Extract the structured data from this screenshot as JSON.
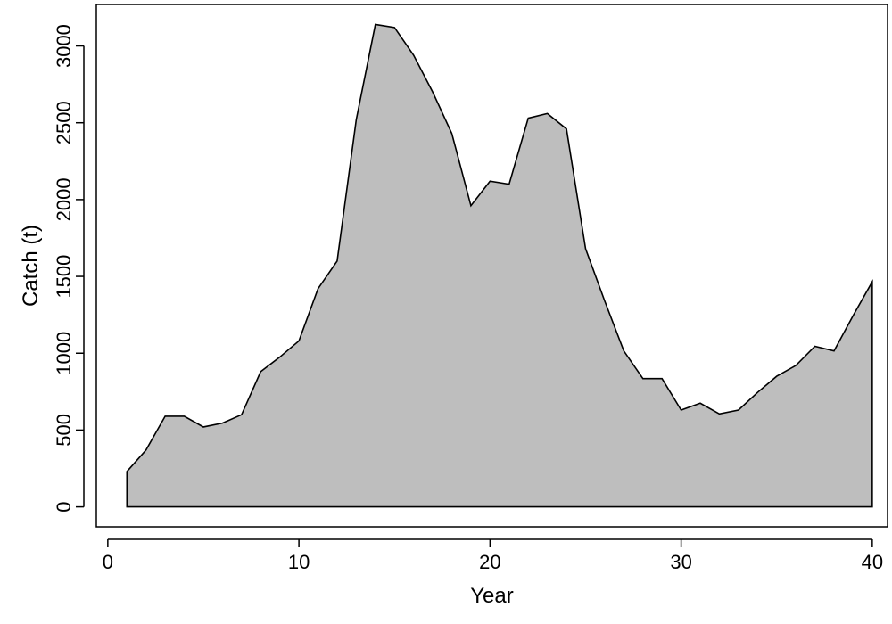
{
  "chart_data": {
    "type": "area",
    "title": "",
    "xlabel": "Year",
    "ylabel": "Catch (t)",
    "xlim": [
      -0.6,
      40.8
    ],
    "ylim": [
      -130,
      3270
    ],
    "xticks": [
      0,
      10,
      20,
      30,
      40
    ],
    "yticks": [
      0,
      500,
      1000,
      1500,
      2000,
      2500,
      3000
    ],
    "grid": false,
    "legend": "none",
    "fill_color": "#bebebe",
    "line_color": "#000000",
    "x": [
      1,
      2,
      3,
      4,
      5,
      6,
      7,
      8,
      9,
      10,
      11,
      12,
      13,
      14,
      15,
      16,
      17,
      18,
      19,
      20,
      21,
      22,
      23,
      24,
      25,
      26,
      27,
      28,
      29,
      30,
      31,
      32,
      33,
      34,
      35,
      36,
      37,
      38,
      39,
      40
    ],
    "y": [
      230,
      370,
      590,
      590,
      520,
      545,
      600,
      880,
      975,
      1080,
      1420,
      1600,
      2520,
      3140,
      3120,
      2940,
      2700,
      2430,
      1960,
      2120,
      2100,
      2530,
      2560,
      2460,
      1680,
      1340,
      1015,
      835,
      835,
      630,
      675,
      605,
      630,
      745,
      850,
      920,
      1045,
      1015,
      1245,
      1465
    ]
  }
}
